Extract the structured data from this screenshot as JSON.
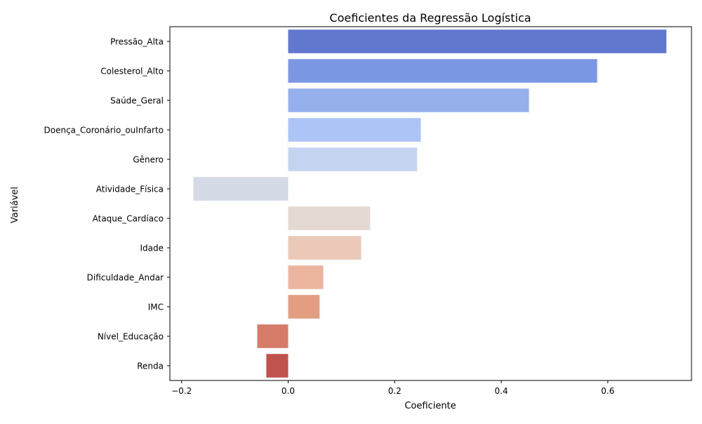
{
  "chart_data": {
    "type": "bar",
    "orientation": "horizontal",
    "title": "Coeficientes da Regressão Logística",
    "xlabel": "Coeficiente",
    "ylabel": "Variável",
    "categories": [
      "Pressão_Alta",
      "Colesterol_Alto",
      "Saúde_Geral",
      "Doença_Coronário_ouInfarto",
      "Gênero",
      "Atividade_Física",
      "Ataque_Cardíaco",
      "Idade",
      "Dificuldade_Andar",
      "IMC",
      "Nível_Educação",
      "Renda"
    ],
    "values": [
      0.71,
      0.58,
      0.452,
      0.249,
      0.242,
      -0.178,
      0.154,
      0.137,
      0.066,
      0.059,
      -0.058,
      -0.041
    ],
    "colors": [
      "#6278cf",
      "#7b97e4",
      "#96b0ed",
      "#acc4f6",
      "#c5d3f1",
      "#d4dbe6",
      "#e4d9d3",
      "#ebc8b8",
      "#ecb59f",
      "#e39d82",
      "#d77b69",
      "#c0534d"
    ],
    "xlim": [
      -0.222,
      0.757
    ],
    "xticks": [
      -0.2,
      0.0,
      0.2,
      0.4,
      0.6
    ],
    "xtick_labels": [
      "−0.2",
      "0.0",
      "0.2",
      "0.4",
      "0.6"
    ],
    "grid": false,
    "legend": "none"
  }
}
